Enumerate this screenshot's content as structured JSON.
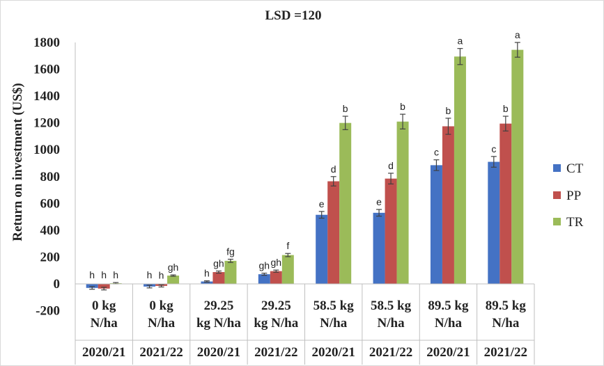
{
  "chart_data": {
    "type": "bar",
    "title": "LSD =120",
    "ylabel": "Return on investment (US$)",
    "xlabel": "",
    "ylim": [
      -200,
      1800
    ],
    "yticks": [
      -200,
      0,
      200,
      400,
      600,
      800,
      1000,
      1200,
      1400,
      1600,
      1800
    ],
    "ytick_labels": [
      "-200",
      "0",
      "200",
      "400",
      "600",
      "800",
      "1000",
      "1200",
      "1400",
      "1600",
      "1800"
    ],
    "grid": false,
    "legend_position": "right",
    "categories": [
      {
        "line1": "0 kg",
        "line2": "N/ha",
        "year": "2020/21"
      },
      {
        "line1": "0 kg",
        "line2": "N/ha",
        "year": "2021/22"
      },
      {
        "line1": "29.25",
        "line2": "kg N/ha",
        "year": "2020/21"
      },
      {
        "line1": "29.25",
        "line2": "kg N/ha",
        "year": "2021/22"
      },
      {
        "line1": "58.5 kg",
        "line2": "N/ha",
        "year": "2020/21"
      },
      {
        "line1": "58.5 kg",
        "line2": "N/ha",
        "year": "2021/22"
      },
      {
        "line1": "89.5 kg",
        "line2": "N/ha",
        "year": "2020/21"
      },
      {
        "line1": "89.5 kg",
        "line2": "N/ha",
        "year": "2021/22"
      }
    ],
    "series": [
      {
        "name": "CT",
        "color": "#4472c4",
        "values": [
          -30,
          -20,
          18,
          72,
          515,
          530,
          885,
          910
        ],
        "errors": [
          10,
          10,
          5,
          8,
          25,
          25,
          40,
          40
        ],
        "letters": [
          "h",
          "h",
          "h",
          "gh",
          "e",
          "e",
          "c",
          "c"
        ]
      },
      {
        "name": "PP",
        "color": "#c0504d",
        "values": [
          -35,
          -15,
          88,
          95,
          765,
          785,
          1175,
          1195
        ],
        "errors": [
          10,
          8,
          8,
          8,
          35,
          40,
          60,
          55
        ],
        "letters": [
          "h",
          "h",
          "gh",
          "gh",
          "d",
          "d",
          "b",
          "b"
        ]
      },
      {
        "name": "TR",
        "color": "#9bbb59",
        "values": [
          5,
          62,
          172,
          215,
          1200,
          1210,
          1695,
          1745
        ],
        "errors": [
          5,
          5,
          12,
          12,
          50,
          55,
          60,
          55
        ],
        "letters": [
          "h",
          "gh",
          "fg",
          "f",
          "b",
          "b",
          "a",
          "a"
        ]
      }
    ]
  }
}
